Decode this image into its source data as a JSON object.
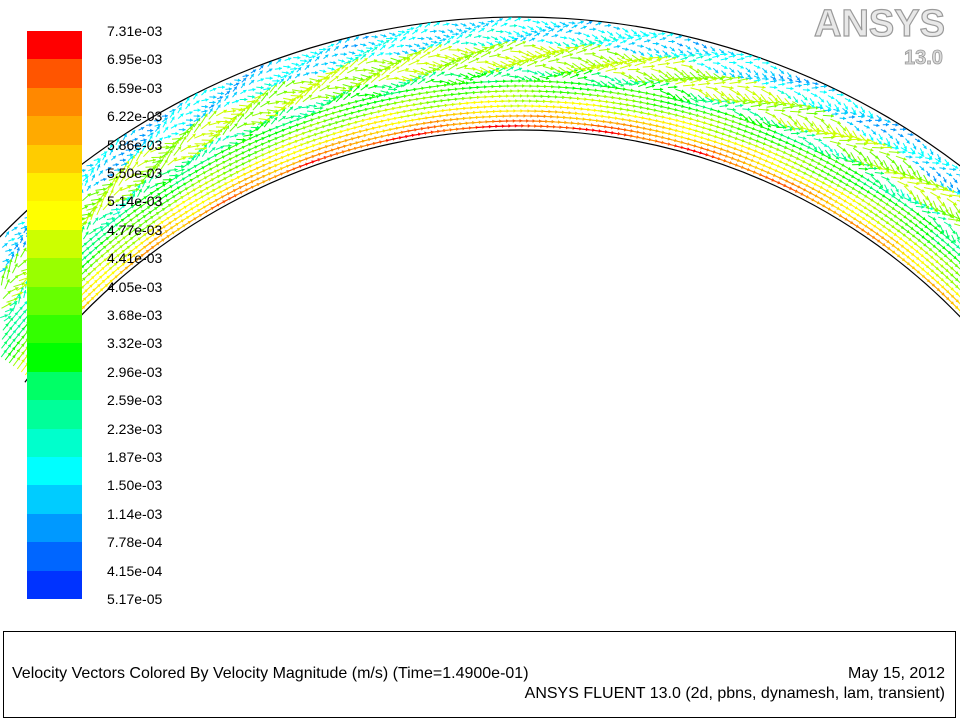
{
  "chart_data": {
    "type": "vector-field",
    "quantity": "Velocity Magnitude",
    "units": "m/s",
    "colormap": [
      "#0000ff",
      "#0033ff",
      "#0066ff",
      "#0099ff",
      "#00ccff",
      "#00ffff",
      "#00ffcc",
      "#00ff99",
      "#00ff66",
      "#00ff00",
      "#33ff00",
      "#66ff00",
      "#99ff00",
      "#ccff00",
      "#ffff00",
      "#ffee00",
      "#ffcc00",
      "#ffaa00",
      "#ff8800",
      "#ff5500",
      "#ff0000"
    ],
    "legend_ticks": [
      "7.31e-03",
      "6.95e-03",
      "6.59e-03",
      "6.22e-03",
      "5.86e-03",
      "5.50e-03",
      "5.14e-03",
      "4.77e-03",
      "4.41e-03",
      "4.05e-03",
      "3.68e-03",
      "3.32e-03",
      "2.96e-03",
      "2.59e-03",
      "2.23e-03",
      "1.87e-03",
      "1.50e-03",
      "1.14e-03",
      "7.78e-04",
      "4.15e-04",
      "5.17e-05"
    ],
    "min": 5.17e-05,
    "max": 0.00731,
    "title": "Velocity Vectors Colored By Velocity Magnitude (m/s)",
    "time_label": "(Time=1.4900e-01)"
  },
  "caption": {
    "title": "Velocity Vectors Colored By Velocity Magnitude (m/s)  (Time=1.4900e-01)",
    "date": "May 15, 2012",
    "solver": "ANSYS FLUENT 13.0 (2d, pbns, dynamesh, lam, transient)"
  },
  "logo": {
    "brand": "ANSYS",
    "version": "13.0"
  }
}
